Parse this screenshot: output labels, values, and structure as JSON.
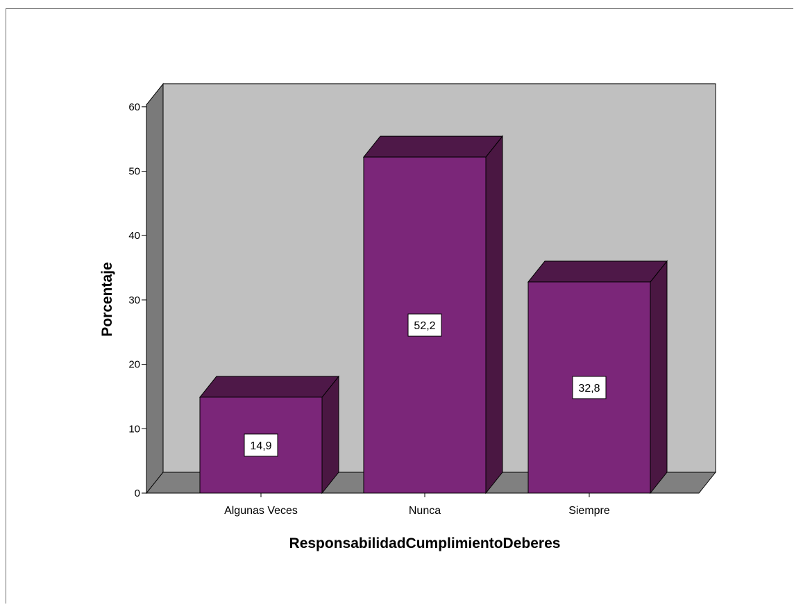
{
  "chart_data": {
    "type": "bar",
    "style": "3d",
    "categories": [
      "Algunas Veces",
      "Nunca",
      "Siempre"
    ],
    "values": [
      14.9,
      52.2,
      32.8
    ],
    "data_labels": [
      "14,9",
      "52,2",
      "32,8"
    ],
    "xlabel": "ResponsabilidadCumplimientoDeberes",
    "ylabel": "Porcentaje",
    "ylim": [
      0,
      60
    ],
    "yticks": [
      "0",
      "10",
      "20",
      "30",
      "40",
      "50",
      "60"
    ],
    "grid": false,
    "legend": "none",
    "colors": {
      "bar_front": "#7b2679",
      "bar_top": "#4e1848",
      "bar_side": "#4a1742",
      "wall_back": "#c0c0c0",
      "wall_side": "#7a7a7a",
      "floor": "#808080"
    }
  }
}
